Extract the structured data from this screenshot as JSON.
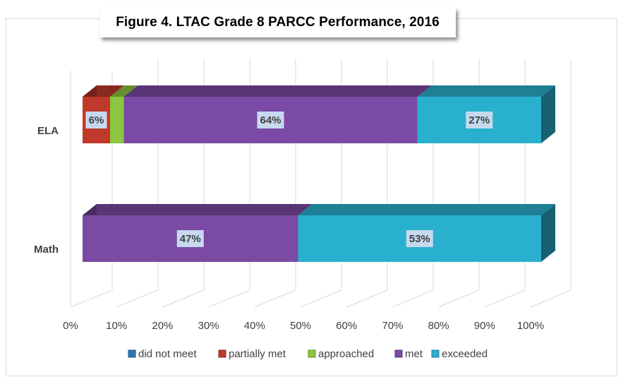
{
  "chart_data": {
    "type": "bar",
    "orientation": "horizontal",
    "stacked": true,
    "percent_stacked": true,
    "title": "Figure 4. LTAC Grade 8 PARCC Performance, 2016",
    "categories": [
      "ELA",
      "Math"
    ],
    "series": [
      {
        "name": "did not meet",
        "values": [
          0,
          0
        ],
        "labels": [
          "",
          ""
        ],
        "color": "#2e75b6"
      },
      {
        "name": "partially met",
        "values": [
          6,
          0
        ],
        "labels": [
          "6%",
          ""
        ],
        "color": "#c0392b"
      },
      {
        "name": "approached",
        "values": [
          3,
          0
        ],
        "labels": [
          "",
          ""
        ],
        "color": "#8dc63f"
      },
      {
        "name": "met",
        "values": [
          64,
          47
        ],
        "labels": [
          "64%",
          "47%"
        ],
        "color": "#7b4aa4"
      },
      {
        "name": "exceeded",
        "values": [
          27,
          53
        ],
        "labels": [
          "27%",
          "53%"
        ],
        "color": "#2ab0cf"
      }
    ],
    "x_ticks": [
      "0%",
      "10%",
      "20%",
      "30%",
      "40%",
      "50%",
      "60%",
      "70%",
      "80%",
      "90%",
      "100%"
    ],
    "xlim": [
      0,
      100
    ],
    "grid": true,
    "legend_position": "bottom",
    "three_d": true
  }
}
